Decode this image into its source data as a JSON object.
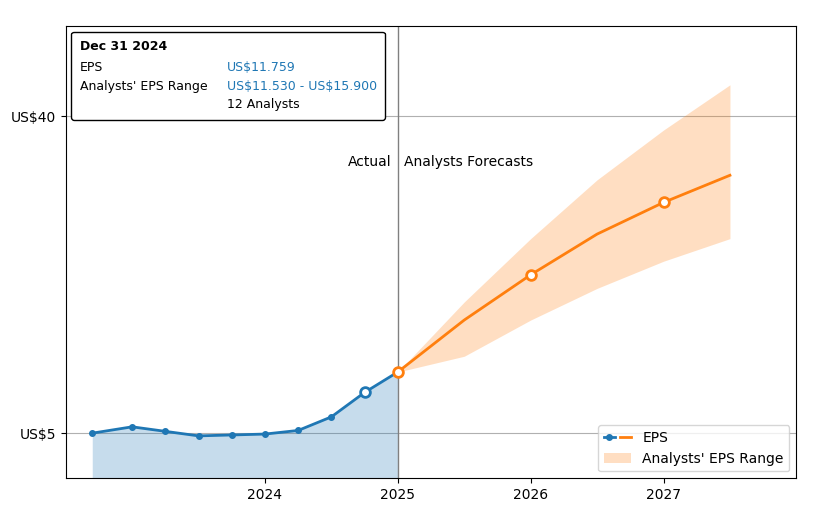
{
  "chart_data": {
    "type": "line",
    "xlim": [
      2022.5,
      2028.0
    ],
    "xticks": [
      2024,
      2025,
      2026,
      2027
    ],
    "ylim": [
      0,
      50
    ],
    "yticks": [
      {
        "value": 5,
        "label": "US$5"
      },
      {
        "value": 40,
        "label": "US$40"
      }
    ],
    "grid": true,
    "legend": "lower right",
    "series": [
      {
        "name": "EPS",
        "type": "area",
        "marker": "o",
        "x": [
          2022.7,
          2023.0,
          2023.25,
          2023.5,
          2023.75,
          2024.0,
          2024.25,
          2024.5,
          2024.75,
          2025.0
        ],
        "values": [
          5.0,
          5.7,
          5.2,
          4.7,
          4.8,
          4.9,
          5.3,
          6.8,
          9.5,
          11.759
        ]
      },
      {
        "name": "EPS",
        "type": "line",
        "x": [
          2025.0,
          2025.5,
          2026.0,
          2026.5,
          2027.0,
          2027.5
        ],
        "values": [
          11.759,
          17.5,
          22.5,
          27.0,
          30.5,
          33.5
        ]
      }
    ],
    "band": {
      "name": "Analysts' EPS Range",
      "x": [
        2025.0,
        2025.5,
        2026.0,
        2026.5,
        2027.0,
        2027.5
      ],
      "lower": [
        11.759,
        13.5,
        17.5,
        21.0,
        24.0,
        26.5
      ],
      "upper": [
        11.759,
        19.5,
        26.5,
        33.0,
        38.5,
        43.5
      ]
    },
    "divider": 2025.0,
    "region_labels": [
      "Actual",
      "Analysts Forecasts"
    ],
    "highlights": {
      "x": [
        2024.75,
        2025.0,
        2026.0,
        2027.0
      ],
      "y": [
        9.5,
        11.759,
        22.5,
        30.5
      ]
    },
    "tooltip": {
      "title": "Dec 31 2024",
      "rows": [
        {
          "label": "EPS",
          "value": "US$11.759"
        },
        {
          "label": "Analysts' EPS Range",
          "value": "US$11.530 - US$15.900",
          "note": "12 Analysts"
        }
      ]
    }
  }
}
